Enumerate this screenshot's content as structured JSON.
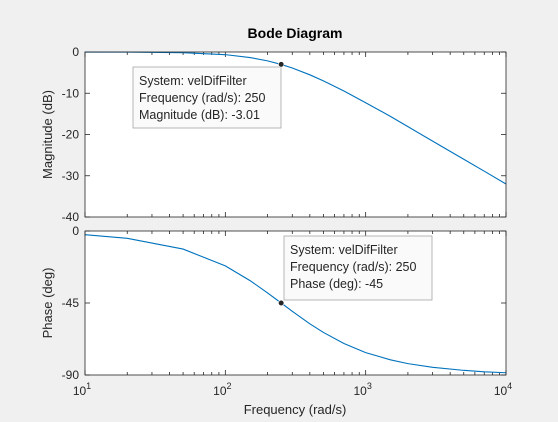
{
  "chart_data": {
    "type": "line",
    "title": "Bode Diagram",
    "xlabel": "Frequency  (rad/s)",
    "xscale": "log",
    "xlim": [
      10,
      10000
    ],
    "x_ticks": [
      10,
      100,
      1000,
      10000
    ],
    "series_color": "#0072BD",
    "system_name": "velDifFilter",
    "corner_frequency": 250,
    "panels": [
      {
        "name": "magnitude",
        "ylabel": "Magnitude (dB)",
        "ylim": [
          -40,
          0
        ],
        "y_ticks": [
          0,
          -10,
          -20,
          -30,
          -40
        ],
        "y_tick_labels": [
          "0",
          "-10",
          "-20",
          "-30",
          "-40"
        ],
        "series": [
          {
            "x": [
              10,
              20,
              50,
              100,
              150,
              200,
              250,
              300,
              400,
              500,
              700,
              1000,
              1500,
              2000,
              3000,
              5000,
              7000,
              10000
            ],
            "y": [
              -0.007,
              -0.028,
              -0.17,
              -0.64,
              -1.34,
              -2.15,
              -3.01,
              -3.88,
              -5.53,
              -6.99,
              -9.46,
              -12.3,
              -15.6,
              -18.1,
              -21.6,
              -26.0,
              -28.9,
              -32.0
            ]
          }
        ],
        "datatip": {
          "marker_x": 250,
          "marker_y": -3.01,
          "lines": [
            "System: velDifFilter",
            "Frequency (rad/s): 250",
            "Magnitude (dB): -3.01"
          ]
        }
      },
      {
        "name": "phase",
        "ylabel": "Phase (deg)",
        "ylim": [
          -90,
          0
        ],
        "y_ticks": [
          0,
          -45,
          -90
        ],
        "y_tick_labels": [
          "0",
          "-45",
          "-90"
        ],
        "series": [
          {
            "x": [
              10,
              20,
              50,
              100,
              150,
              200,
              250,
              300,
              400,
              500,
              700,
              1000,
              1500,
              2000,
              3000,
              5000,
              7000,
              10000
            ],
            "y": [
              -2.29,
              -4.57,
              -11.3,
              -21.8,
              -31.0,
              -38.7,
              -45.0,
              -50.2,
              -58.0,
              -63.4,
              -70.3,
              -76.0,
              -80.5,
              -82.9,
              -85.2,
              -87.1,
              -88.0,
              -88.6
            ]
          }
        ],
        "datatip": {
          "marker_x": 250,
          "marker_y": -45,
          "lines": [
            "System: velDifFilter",
            "Frequency (rad/s): 250",
            "Phase (deg): -45"
          ]
        }
      }
    ]
  }
}
